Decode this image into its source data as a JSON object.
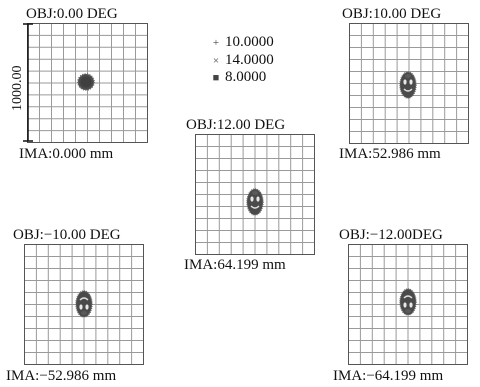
{
  "scale_bar": {
    "label": "1000.00"
  },
  "legend": [
    {
      "marker": "+",
      "label": "10.0000",
      "icon": "plus-marker-icon"
    },
    {
      "marker": "×",
      "label": "14.0000",
      "icon": "cross-marker-icon"
    },
    {
      "marker": "■",
      "label": "8.0000",
      "icon": "square-marker-icon"
    }
  ],
  "fields": [
    {
      "obj": "OBJ:0.00 DEG",
      "ima": "IMA:0.000 mm",
      "spot_shape": "round"
    },
    {
      "obj": "OBJ:10.00 DEG",
      "ima": "IMA:52.986 mm",
      "spot_shape": "coma"
    },
    {
      "obj": "OBJ:12.00 DEG",
      "ima": "IMA:64.199 mm",
      "spot_shape": "coma"
    },
    {
      "obj": "OBJ:−10.00 DEG",
      "ima": "IMA:−52.986 mm",
      "spot_shape": "coma-inverted"
    },
    {
      "obj": "OBJ:−12.00DEG",
      "ima": "IMA:−64.199 mm",
      "spot_shape": "coma-inverted"
    }
  ],
  "colors": {
    "grid": "#9a9a9a",
    "frame": "#555555",
    "spot": "#4a4a4a"
  }
}
